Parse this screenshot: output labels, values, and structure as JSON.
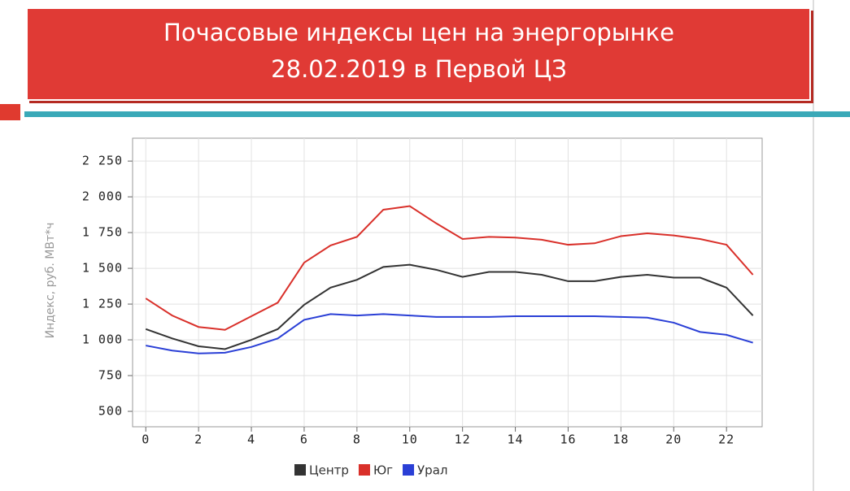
{
  "chart_data": {
    "type": "line",
    "title": "Почасовые индексы цен на энергорынке 28.02.2019 в Первой ЦЗ",
    "y_label": "Индекс, руб. МВт*ч",
    "x": [
      0,
      1,
      2,
      3,
      4,
      5,
      6,
      7,
      8,
      9,
      10,
      11,
      12,
      13,
      14,
      15,
      16,
      17,
      18,
      19,
      20,
      21,
      22,
      23
    ],
    "xlim": [
      -0.5,
      23.35
    ],
    "xticks": [
      0,
      2,
      4,
      6,
      8,
      10,
      12,
      14,
      16,
      18,
      20,
      22
    ],
    "ylim": [
      392,
      2410
    ],
    "yticks": [
      500,
      750,
      {
        "value": 1000,
        "label": "1 000"
      },
      {
        "value": 1250,
        "label": "1 250"
      },
      {
        "value": 1500,
        "label": "1 500"
      },
      {
        "value": 1750,
        "label": "1 750"
      },
      {
        "value": 2000,
        "label": "2 000"
      },
      {
        "value": 2250,
        "label": "2 250"
      }
    ],
    "grid": true,
    "legend": "bottom",
    "series": [
      {
        "name": "Центр",
        "color": "#333333",
        "values": [
          1075,
          1010,
          955,
          935,
          1000,
          1075,
          1245,
          1365,
          1420,
          1510,
          1525,
          1490,
          1440,
          1475,
          1475,
          1455,
          1410,
          1410,
          1440,
          1455,
          1435,
          1435,
          1365,
          1170
        ]
      },
      {
        "name": "Юг",
        "color": "#d9302a",
        "values": [
          1290,
          1170,
          1090,
          1070,
          1165,
          1260,
          1540,
          1660,
          1720,
          1910,
          1935,
          1815,
          1705,
          1720,
          1715,
          1700,
          1665,
          1675,
          1725,
          1745,
          1730,
          1705,
          1665,
          1455
        ]
      },
      {
        "name": "Урал",
        "color": "#2a3fd6",
        "values": [
          960,
          925,
          905,
          910,
          950,
          1010,
          1140,
          1180,
          1170,
          1180,
          1170,
          1160,
          1160,
          1160,
          1165,
          1165,
          1165,
          1165,
          1160,
          1155,
          1120,
          1055,
          1035,
          980
        ]
      }
    ]
  }
}
